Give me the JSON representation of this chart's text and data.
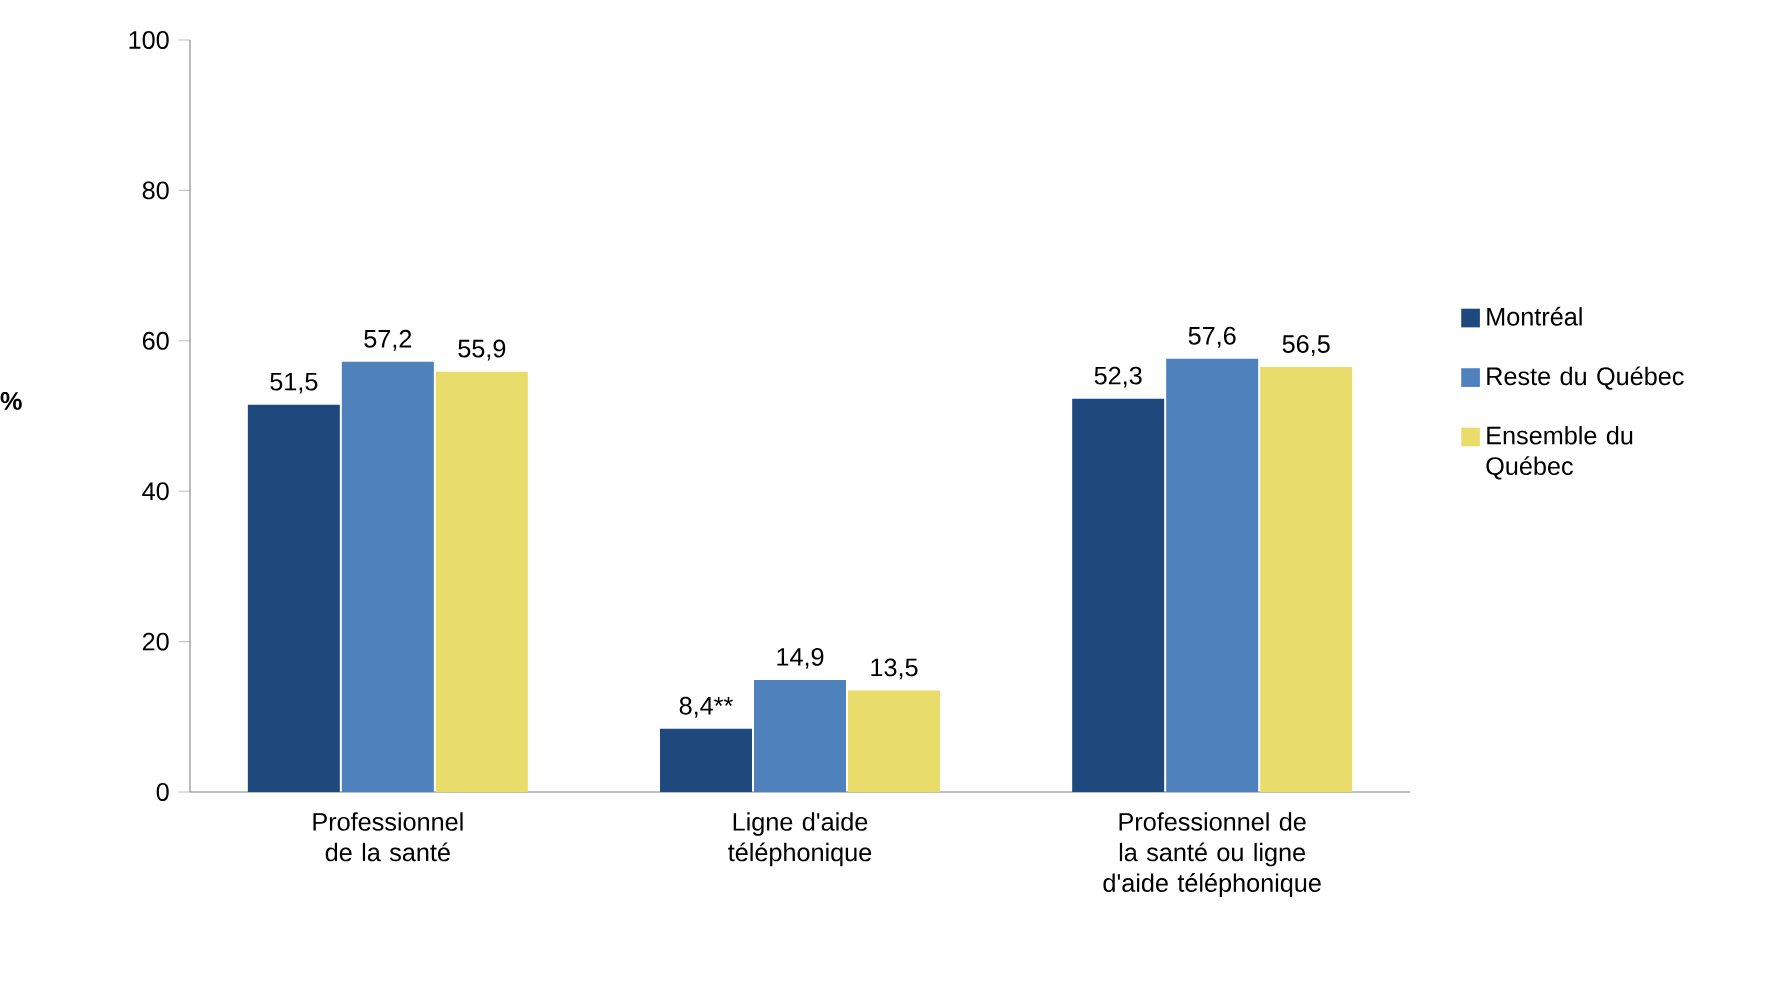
{
  "chart_data": {
    "type": "bar",
    "ylabel": "%",
    "categories": [
      "Professionnel de la santé",
      "Ligne d'aide téléphonique",
      "Professionnel de la santé ou ligne d'aide téléphonique"
    ],
    "series": [
      {
        "name": "Montréal",
        "color": "#1f497d",
        "values": [
          51.5,
          8.4,
          52.3
        ],
        "value_labels": [
          "51,5",
          "8,4**",
          "52,3"
        ]
      },
      {
        "name": "Reste du Québec",
        "color": "#4f81bd",
        "values": [
          57.2,
          14.9,
          57.6
        ],
        "value_labels": [
          "57,2",
          "14,9",
          "57,6"
        ]
      },
      {
        "name": "Ensemble du Québec",
        "color": "#e8dc6a",
        "values": [
          55.9,
          13.5,
          56.5
        ],
        "value_labels": [
          "55,9",
          "13,5",
          "56,5"
        ]
      }
    ],
    "ylim": [
      0,
      100
    ],
    "yticks": [
      0,
      20,
      40,
      60,
      80,
      100
    ],
    "legend": "right"
  }
}
